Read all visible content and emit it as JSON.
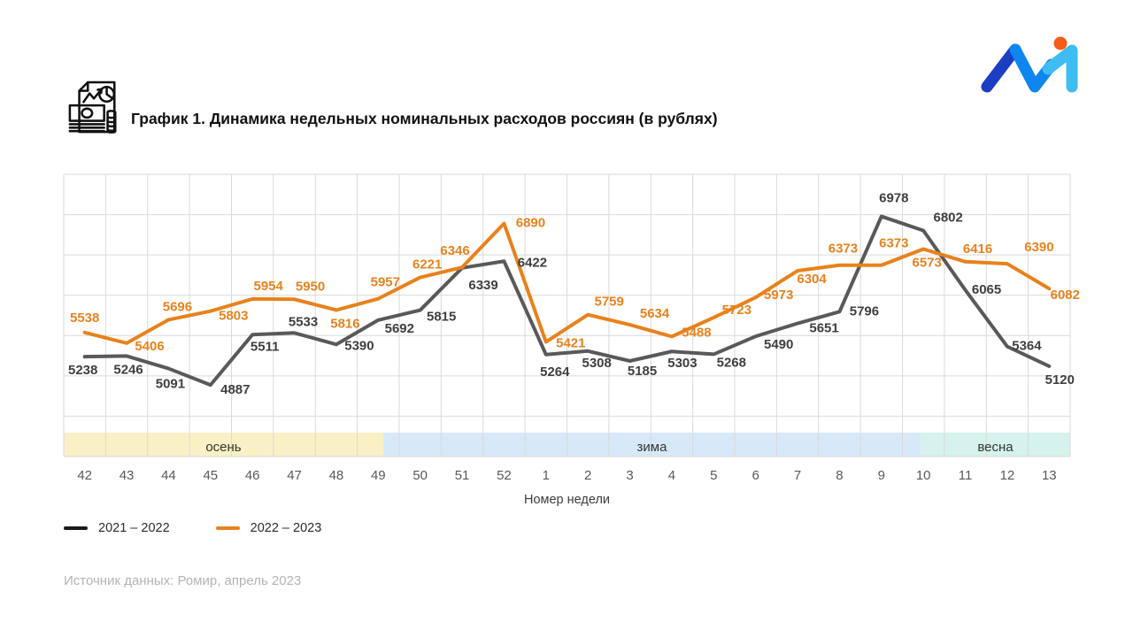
{
  "header": {
    "title": "График 1. Динамика недельных номинальных расходов россиян (в рублях)",
    "icon": "money-chart-icon",
    "logo": "brand-m-logo"
  },
  "chart_data": {
    "type": "line",
    "categories": [
      "42",
      "43",
      "44",
      "45",
      "46",
      "47",
      "48",
      "49",
      "50",
      "51",
      "52",
      "1",
      "2",
      "3",
      "4",
      "5",
      "6",
      "7",
      "8",
      "9",
      "10",
      "11",
      "12",
      "13"
    ],
    "series": [
      {
        "name": "2021 – 2022",
        "color": "#595959",
        "label_color": "#3f3f3f",
        "values": [
          5238,
          5246,
          5091,
          4887,
          5511,
          5533,
          5390,
          5692,
          5815,
          6339,
          6422,
          5264,
          5308,
          5185,
          5303,
          5268,
          5490,
          5651,
          5796,
          6978,
          6802,
          6065,
          5364,
          5120
        ]
      },
      {
        "name": "2022 – 2023",
        "color": "#E8821C",
        "label_color": "#E8821C",
        "values": [
          5538,
          5406,
          5696,
          5803,
          5954,
          5950,
          5816,
          5957,
          6221,
          6346,
          6890,
          5421,
          5759,
          5634,
          5488,
          5723,
          5973,
          6304,
          6373,
          6373,
          6573,
          6416,
          6390,
          6082
        ]
      }
    ],
    "title": "График 1. Динамика недельных номинальных расходов россиян (в рублях)",
    "xlabel": "Номер недели",
    "ylabel": "",
    "ylim": [
      4000,
      7500
    ],
    "grid": true,
    "legend_position": "bottom-left",
    "seasons": [
      {
        "label": "осень",
        "weeks": "42–49",
        "color": "#FAF0C5"
      },
      {
        "label": "зима",
        "weeks": "50–9",
        "color": "#D7E9F8"
      },
      {
        "label": "весна",
        "weeks": "10–13",
        "color": "#D5F2ED"
      }
    ]
  },
  "legend": {
    "items": [
      {
        "label": "2021 – 2022",
        "swatch_color": "#1a1a1a"
      },
      {
        "label": "2022 – 2023",
        "swatch_color": "#E8821C"
      }
    ]
  },
  "source": {
    "text": "Источник данных: Ромир, апрель 2023"
  },
  "colors": {
    "grid": "#d9d9d9",
    "tick_label": "#595959",
    "season_label": "#333333",
    "autumn_band": "#FAF0C5",
    "winter_band": "#D7E9F8",
    "spring_band": "#D5F2ED",
    "orange_series": "#E8821C",
    "gray_series": "#595959",
    "logo_dark_blue": "#1C3EC2",
    "logo_blue": "#0E86EE",
    "logo_light_blue": "#3FBCF4",
    "logo_orange": "#F75B16"
  }
}
